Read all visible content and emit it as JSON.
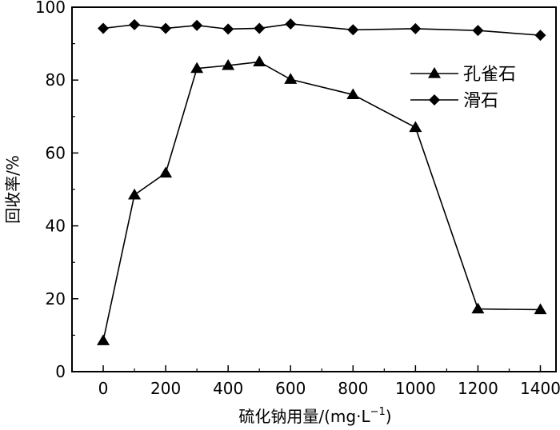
{
  "chart_data": {
    "type": "line",
    "title": "",
    "xlabel": "硫化钠用量/(mg·L",
    "xlabel_sup": "−1",
    "xlabel_end": ")",
    "ylabel": "回收率/%",
    "xlim": [
      -100,
      1450
    ],
    "ylim": [
      0,
      100
    ],
    "xticks": [
      0,
      200,
      400,
      600,
      800,
      1000,
      1200,
      1400
    ],
    "yticks": [
      0,
      20,
      40,
      60,
      80,
      100
    ],
    "legend_position": "top-right",
    "grid": false,
    "series": [
      {
        "name": "孔雀石",
        "marker": "triangle",
        "x": [
          0,
          100,
          200,
          300,
          400,
          500,
          600,
          800,
          1000,
          1200,
          1400
        ],
        "y": [
          8.5,
          48.5,
          54.5,
          83.2,
          84.0,
          85.0,
          80.2,
          76.0,
          67.0,
          17.2,
          17.0
        ]
      },
      {
        "name": "滑石",
        "marker": "diamond",
        "x": [
          0,
          100,
          200,
          300,
          400,
          500,
          600,
          800,
          1000,
          1200,
          1400
        ],
        "y": [
          94.2,
          95.2,
          94.2,
          95.0,
          94.0,
          94.2,
          95.4,
          93.8,
          94.1,
          93.6,
          92.3
        ]
      }
    ]
  }
}
